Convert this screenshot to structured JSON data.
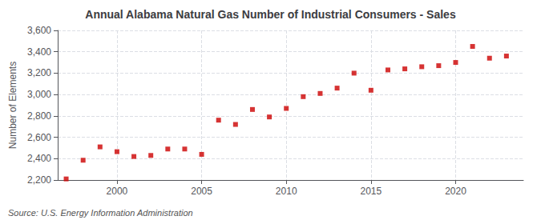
{
  "chart_data": {
    "type": "scatter",
    "title": "Annual Alabama Natural Gas Number of Industrial Consumers - Sales",
    "ylabel": "Number of Elements",
    "annotations": [
      "Source: U.S. Energy Information Administration"
    ],
    "x": [
      1997,
      1998,
      1999,
      2000,
      2001,
      2002,
      2003,
      2004,
      2005,
      2006,
      2007,
      2008,
      2009,
      2010,
      2011,
      2012,
      2013,
      2014,
      2015,
      2016,
      2017,
      2018,
      2019,
      2020,
      2021,
      2022,
      2023
    ],
    "values": [
      2210,
      2385,
      2510,
      2465,
      2420,
      2430,
      2490,
      2490,
      2440,
      2760,
      2720,
      2860,
      2790,
      2870,
      2980,
      3010,
      3060,
      3200,
      3040,
      3230,
      3240,
      3260,
      3270,
      3300,
      3450,
      3340,
      3360
    ],
    "color": "#cc0000",
    "marker": "square",
    "xlim": [
      1996.5,
      2024
    ],
    "xticks": [
      2000,
      2005,
      2010,
      2015,
      2020
    ],
    "ylim": [
      2200,
      3600
    ],
    "yticks": [
      {
        "value": 2200,
        "label": "2,200"
      },
      {
        "value": 2400,
        "label": "2,400"
      },
      {
        "value": 2600,
        "label": "2,600"
      },
      {
        "value": 2800,
        "label": "2,800"
      },
      {
        "value": 3000,
        "label": "3,000"
      },
      {
        "value": 3200,
        "label": "3,200"
      },
      {
        "value": 3400,
        "label": "3,400"
      },
      {
        "value": 3600,
        "label": "3,600"
      }
    ],
    "grid": true
  }
}
